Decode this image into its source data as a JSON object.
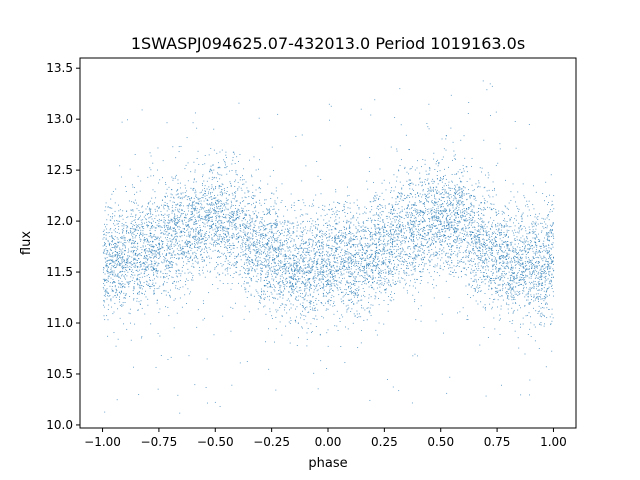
{
  "chart_data": {
    "type": "scatter",
    "title": "1SWASPJ094625.07-432013.0 Period 1019163.0s",
    "xlabel": "phase",
    "ylabel": "flux",
    "xlim": [
      -1.1,
      1.1
    ],
    "ylim": [
      9.97,
      13.6
    ],
    "xticks": [
      -1.0,
      -0.75,
      -0.5,
      -0.25,
      0.0,
      0.25,
      0.5,
      0.75,
      1.0
    ],
    "xtick_labels": [
      "−1.00",
      "−0.75",
      "−0.50",
      "−0.25",
      "0.00",
      "0.25",
      "0.50",
      "0.75",
      "1.00"
    ],
    "yticks": [
      10.0,
      10.5,
      11.0,
      11.5,
      12.0,
      12.5,
      13.0,
      13.5
    ],
    "ytick_labels": [
      "10.0",
      "10.5",
      "11.0",
      "11.5",
      "12.0",
      "12.5",
      "13.0",
      "13.5"
    ],
    "grid": false,
    "point_color": "#1f77b4",
    "series": [
      {
        "phase_range": [
          -1.0,
          1.0
        ],
        "mean_flux_profile": [
          [
            -1.0,
            11.6
          ],
          [
            -0.9,
            11.65
          ],
          [
            -0.8,
            11.7
          ],
          [
            -0.7,
            11.85
          ],
          [
            -0.6,
            11.95
          ],
          [
            -0.5,
            12.05
          ],
          [
            -0.4,
            11.95
          ],
          [
            -0.3,
            11.75
          ],
          [
            -0.2,
            11.6
          ],
          [
            -0.1,
            11.55
          ],
          [
            0.0,
            11.6
          ],
          [
            0.1,
            11.65
          ],
          [
            0.2,
            11.7
          ],
          [
            0.3,
            11.85
          ],
          [
            0.4,
            11.95
          ],
          [
            0.5,
            12.05
          ],
          [
            0.6,
            11.95
          ],
          [
            0.7,
            11.75
          ],
          [
            0.8,
            11.6
          ],
          [
            0.9,
            11.55
          ],
          [
            1.0,
            11.6
          ]
        ],
        "scatter_sigma": 0.28,
        "outlier_range": [
          10.05,
          13.4
        ],
        "n_points": 9000
      }
    ]
  }
}
